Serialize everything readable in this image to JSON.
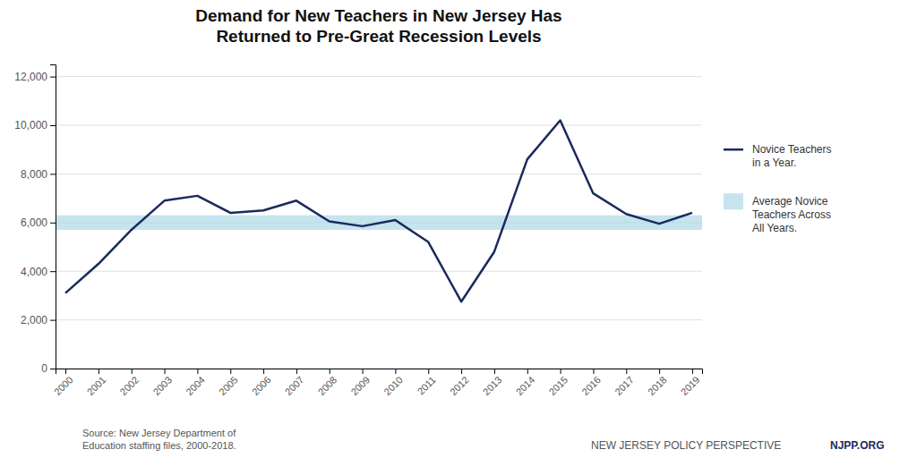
{
  "chart_data": {
    "type": "line",
    "title": "Demand for New Teachers in New Jersey Has\nReturned to Pre-Great Recession Levels",
    "x": [
      2000,
      2001,
      2002,
      2003,
      2004,
      2005,
      2006,
      2007,
      2008,
      2009,
      2010,
      2011,
      2012,
      2013,
      2014,
      2015,
      2016,
      2017,
      2018,
      2019
    ],
    "series": [
      {
        "name": "Novice Teachers\nin a Year.",
        "color": "#1a2a5e",
        "values": [
          3100,
          4300,
          5700,
          6900,
          7100,
          6400,
          6500,
          6900,
          6050,
          5850,
          6100,
          5200,
          2750,
          4800,
          8600,
          10200,
          7200,
          6350,
          5950,
          6400
        ]
      }
    ],
    "band": {
      "name": "Average Novice\nTeachers Across\nAll Years.",
      "color": "#add8e6",
      "low": 5700,
      "high": 6300
    },
    "xlim": [
      1999.7,
      2019.3
    ],
    "xticks": [
      2000,
      2001,
      2002,
      2003,
      2004,
      2005,
      2006,
      2007,
      2008,
      2009,
      2010,
      2011,
      2012,
      2013,
      2014,
      2015,
      2016,
      2017,
      2018,
      2019
    ],
    "ylim": [
      0,
      12500
    ],
    "yticks": [
      0,
      {
        "value": 2000,
        "label": "2,000"
      },
      {
        "value": 4000,
        "label": "4,000"
      },
      {
        "value": 6000,
        "label": "6,000"
      },
      {
        "value": 8000,
        "label": "8,000"
      },
      {
        "value": 10000,
        "label": "10,000"
      },
      {
        "value": 12000,
        "label": "12,000"
      }
    ],
    "grid": true,
    "legend": "right",
    "annotations": [
      "Source: New Jersey Department of\nEducation staffing files, 2000-2018.",
      "NEW JERSEY POLICY PERSPECTIVE",
      "NJPP.ORG"
    ]
  }
}
